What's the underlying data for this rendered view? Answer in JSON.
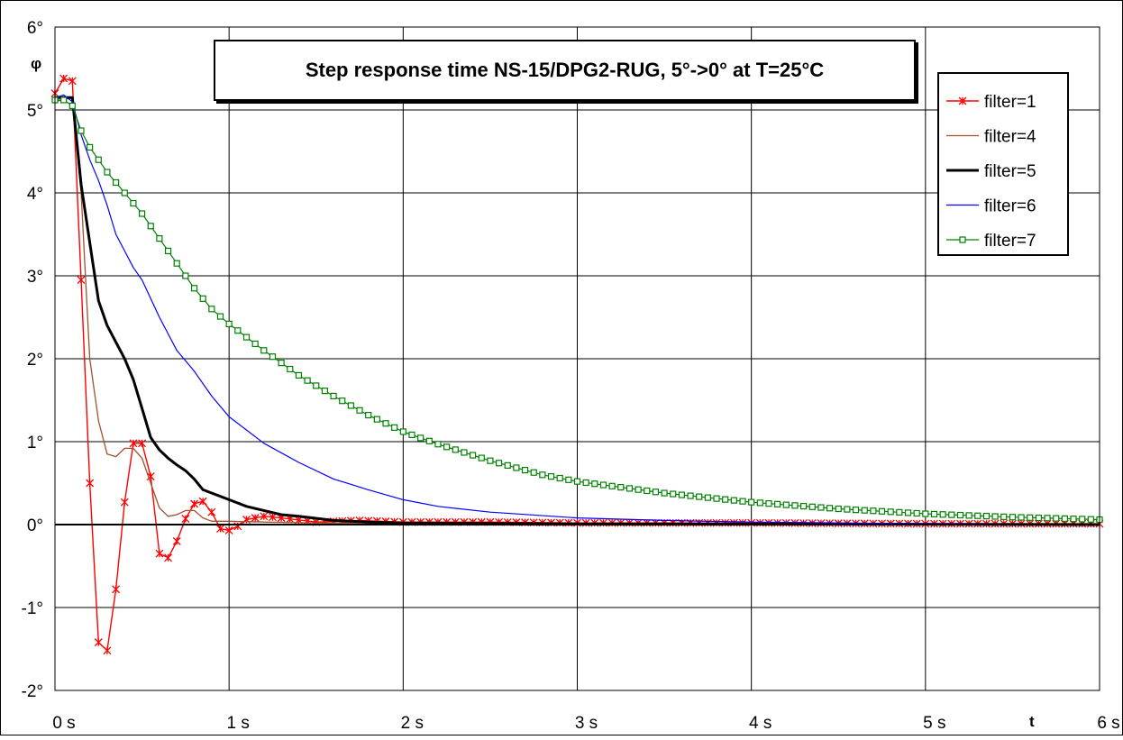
{
  "chart_data": {
    "type": "line",
    "title": "Step response time NS-15/DPG2-RUG, 5°->0° at T=25°C",
    "xlabel": "t",
    "ylabel": "φ",
    "xlim": [
      0,
      6
    ],
    "ylim": [
      -2,
      6
    ],
    "x_ticks": [
      "0 s",
      "1 s",
      "2 s",
      "3 s",
      "4 s",
      "5 s",
      "6 s"
    ],
    "y_ticks": [
      "-2°",
      "-1°",
      "0°",
      "1°",
      "2°",
      "3°",
      "4°",
      "5°",
      "6°"
    ],
    "grid": true,
    "legend_position": "top-right",
    "series": [
      {
        "name": "filter=1",
        "color": "#ff0000",
        "marker": "asterisk",
        "sample_step": 0.05,
        "x": [
          0,
          0.05,
          0.1,
          0.15,
          0.2,
          0.25,
          0.3,
          0.35,
          0.4,
          0.45,
          0.5,
          0.55,
          0.6,
          0.65,
          0.7,
          0.75,
          0.8,
          0.85,
          0.9,
          0.95,
          1.0,
          1.05,
          1.1,
          1.2,
          1.3,
          1.5,
          1.75,
          2.0,
          2.5,
          3.0,
          4.0,
          5.0,
          6.0
        ],
        "y": [
          5.2,
          5.38,
          5.35,
          2.95,
          0.5,
          -1.42,
          -1.52,
          -0.78,
          0.27,
          0.98,
          0.98,
          0.58,
          -0.35,
          -0.4,
          -0.2,
          0.07,
          0.25,
          0.28,
          0.15,
          -0.05,
          -0.07,
          -0.02,
          0.06,
          0.1,
          0.08,
          0.03,
          0.05,
          0.03,
          0.03,
          0.02,
          0.02,
          0.01,
          0.01
        ]
      },
      {
        "name": "filter=4",
        "color": "#a0522d",
        "marker": "none",
        "x": [
          0,
          0.1,
          0.15,
          0.2,
          0.25,
          0.3,
          0.35,
          0.4,
          0.45,
          0.5,
          0.55,
          0.6,
          0.65,
          0.7,
          0.75,
          0.8,
          0.85,
          0.9,
          1.0,
          1.2,
          1.5,
          2.0,
          3.0,
          6.0
        ],
        "y": [
          5.1,
          5.15,
          4.0,
          2.0,
          1.25,
          0.85,
          0.82,
          0.92,
          0.92,
          0.8,
          0.5,
          0.2,
          0.1,
          0.12,
          0.17,
          0.17,
          0.08,
          0.04,
          0.04,
          0.03,
          0.02,
          0.02,
          0.01,
          0.0
        ]
      },
      {
        "name": "filter=5",
        "color": "#000000",
        "marker": "none",
        "x": [
          0,
          0.1,
          0.15,
          0.2,
          0.25,
          0.3,
          0.35,
          0.4,
          0.45,
          0.5,
          0.55,
          0.6,
          0.65,
          0.7,
          0.75,
          0.8,
          0.85,
          0.9,
          1.0,
          1.1,
          1.2,
          1.3,
          1.4,
          1.6,
          1.8,
          2.0,
          3.0,
          6.0
        ],
        "y": [
          5.15,
          5.15,
          4.1,
          3.4,
          2.7,
          2.4,
          2.2,
          2.0,
          1.75,
          1.4,
          1.05,
          0.9,
          0.8,
          0.72,
          0.65,
          0.55,
          0.42,
          0.38,
          0.3,
          0.22,
          0.17,
          0.12,
          0.1,
          0.05,
          0.03,
          0.02,
          0.01,
          0.0
        ]
      },
      {
        "name": "filter=6",
        "color": "#0000ff",
        "marker": "none",
        "x": [
          0,
          0.05,
          0.1,
          0.15,
          0.2,
          0.25,
          0.3,
          0.35,
          0.4,
          0.45,
          0.5,
          0.6,
          0.7,
          0.8,
          0.9,
          1.0,
          1.2,
          1.4,
          1.6,
          1.8,
          2.0,
          2.2,
          2.5,
          3.0,
          3.5,
          4.0,
          5.0,
          6.0
        ],
        "y": [
          5.15,
          5.18,
          5.1,
          4.7,
          4.4,
          4.15,
          3.85,
          3.5,
          3.3,
          3.1,
          2.95,
          2.5,
          2.1,
          1.85,
          1.55,
          1.3,
          0.98,
          0.75,
          0.55,
          0.42,
          0.3,
          0.22,
          0.15,
          0.08,
          0.05,
          0.03,
          0.01,
          0.0
        ]
      },
      {
        "name": "filter=7",
        "color": "#008000",
        "marker": "square",
        "sample_step": 0.05,
        "x": [
          0,
          0.05,
          0.1,
          0.15,
          0.2,
          0.3,
          0.4,
          0.5,
          0.6,
          0.7,
          0.8,
          0.9,
          1.0,
          1.2,
          1.4,
          1.6,
          1.8,
          2.0,
          2.2,
          2.5,
          2.8,
          3.0,
          3.5,
          4.0,
          4.5,
          5.0,
          5.5,
          6.0
        ],
        "y": [
          5.12,
          5.12,
          5.05,
          4.75,
          4.55,
          4.25,
          4.0,
          3.75,
          3.45,
          3.15,
          2.85,
          2.6,
          2.42,
          2.1,
          1.8,
          1.55,
          1.32,
          1.12,
          0.97,
          0.77,
          0.6,
          0.52,
          0.38,
          0.27,
          0.19,
          0.13,
          0.09,
          0.06
        ]
      }
    ]
  }
}
